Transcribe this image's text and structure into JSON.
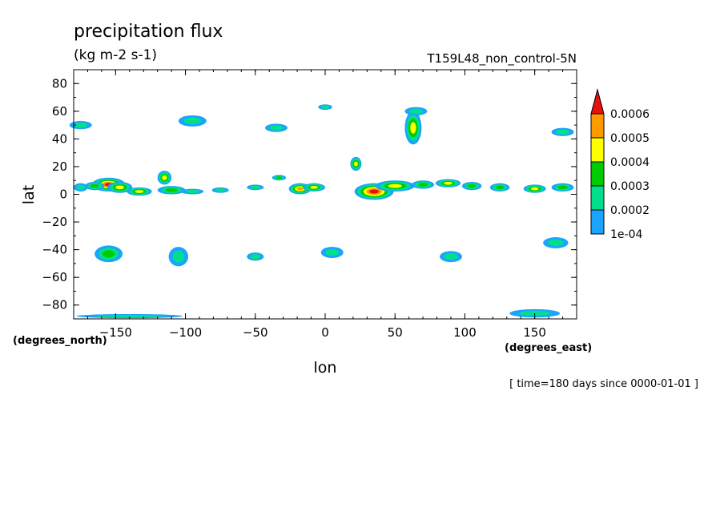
{
  "chart_data": {
    "type": "heatmap",
    "title": "precipitation flux",
    "units": "(kg m-2 s-1)",
    "run_name": "T159L48_non_control-5N",
    "xlabel": "lon",
    "ylabel": "lat",
    "x_units": "(degrees_east)",
    "y_units": "(degrees_north)",
    "time_note": "[ time=180 days since 0000-01-01 ]",
    "xlim": [
      -180,
      180
    ],
    "ylim": [
      -90,
      90
    ],
    "x_ticks": [
      -150,
      -100,
      -50,
      0,
      50,
      100,
      150
    ],
    "x_tick_labels": [
      "−150",
      "−100",
      "−50",
      "0",
      "50",
      "100",
      "150"
    ],
    "y_ticks": [
      80,
      60,
      40,
      20,
      0,
      -20,
      -40,
      -60,
      -80
    ],
    "y_tick_labels": [
      "80",
      "60",
      "40",
      "20",
      "0",
      "−20",
      "−40",
      "−60",
      "−80"
    ],
    "colorbar": {
      "labels": [
        "0.0006",
        "0.0005",
        "0.0004",
        "0.0003",
        "0.0002",
        "1e-04"
      ],
      "levels": [
        0.0001,
        0.0002,
        0.0003,
        0.0004,
        0.0005,
        0.0006
      ],
      "colors": [
        "#1aa3ff",
        "#00e08c",
        "#00cc00",
        "#ffff00",
        "#ff9900",
        "#e81010"
      ]
    },
    "features": [
      {
        "lon": -155,
        "lat": 7,
        "dlon": 12,
        "dlat": 5,
        "level": 6
      },
      {
        "lon": -147,
        "lat": 5,
        "dlon": 9,
        "dlat": 4,
        "level": 4
      },
      {
        "lon": -165,
        "lat": 6,
        "dlon": 7,
        "dlat": 3,
        "level": 3
      },
      {
        "lon": -175,
        "lat": 5,
        "dlon": 5,
        "dlat": 3,
        "level": 2
      },
      {
        "lon": -133,
        "lat": 2,
        "dlon": 9,
        "dlat": 3,
        "level": 4
      },
      {
        "lon": -115,
        "lat": 12,
        "dlon": 5,
        "dlat": 5,
        "level": 4
      },
      {
        "lon": -110,
        "lat": 3,
        "dlon": 10,
        "dlat": 3,
        "level": 3
      },
      {
        "lon": -95,
        "lat": 2,
        "dlon": 8,
        "dlat": 2,
        "level": 2
      },
      {
        "lon": -75,
        "lat": 3,
        "dlon": 6,
        "dlat": 2,
        "level": 2
      },
      {
        "lon": -50,
        "lat": 5,
        "dlon": 6,
        "dlat": 2,
        "level": 2
      },
      {
        "lon": -33,
        "lat": 12,
        "dlon": 5,
        "dlat": 2,
        "level": 3
      },
      {
        "lon": -18,
        "lat": 4,
        "dlon": 8,
        "dlat": 4,
        "level": 5
      },
      {
        "lon": -8,
        "lat": 5,
        "dlon": 8,
        "dlat": 3,
        "level": 4
      },
      {
        "lon": 22,
        "lat": 22,
        "dlon": 4,
        "dlat": 5,
        "level": 4
      },
      {
        "lon": 35,
        "lat": 2,
        "dlon": 14,
        "dlat": 6,
        "level": 6
      },
      {
        "lon": 50,
        "lat": 6,
        "dlon": 14,
        "dlat": 4,
        "level": 4
      },
      {
        "lon": 70,
        "lat": 7,
        "dlon": 8,
        "dlat": 3,
        "level": 3
      },
      {
        "lon": 88,
        "lat": 8,
        "dlon": 9,
        "dlat": 3,
        "level": 4
      },
      {
        "lon": 105,
        "lat": 6,
        "dlon": 7,
        "dlat": 3,
        "level": 3
      },
      {
        "lon": 125,
        "lat": 5,
        "dlon": 7,
        "dlat": 3,
        "level": 3
      },
      {
        "lon": 150,
        "lat": 4,
        "dlon": 8,
        "dlat": 3,
        "level": 4
      },
      {
        "lon": 170,
        "lat": 5,
        "dlon": 8,
        "dlat": 3,
        "level": 3
      },
      {
        "lon": 63,
        "lat": 48,
        "dlon": 6,
        "dlat": 12,
        "level": 4
      },
      {
        "lon": 65,
        "lat": 60,
        "dlon": 8,
        "dlat": 3,
        "level": 2
      },
      {
        "lon": -95,
        "lat": 53,
        "dlon": 10,
        "dlat": 4,
        "level": 2
      },
      {
        "lon": -35,
        "lat": 48,
        "dlon": 8,
        "dlat": 3,
        "level": 2
      },
      {
        "lon": -175,
        "lat": 50,
        "dlon": 8,
        "dlat": 3,
        "level": 2
      },
      {
        "lon": 0,
        "lat": 63,
        "dlon": 5,
        "dlat": 2,
        "level": 2
      },
      {
        "lon": 170,
        "lat": 45,
        "dlon": 8,
        "dlat": 3,
        "level": 2
      },
      {
        "lon": -155,
        "lat": -43,
        "dlon": 10,
        "dlat": 6,
        "level": 3
      },
      {
        "lon": -105,
        "lat": -45,
        "dlon": 7,
        "dlat": 7,
        "level": 2
      },
      {
        "lon": -50,
        "lat": -45,
        "dlon": 6,
        "dlat": 3,
        "level": 2
      },
      {
        "lon": 5,
        "lat": -42,
        "dlon": 8,
        "dlat": 4,
        "level": 2
      },
      {
        "lon": 90,
        "lat": -45,
        "dlon": 8,
        "dlat": 4,
        "level": 2
      },
      {
        "lon": 165,
        "lat": -35,
        "dlon": 9,
        "dlat": 4,
        "level": 2
      },
      {
        "lon": 150,
        "lat": -86,
        "dlon": 18,
        "dlat": 3,
        "level": 2
      },
      {
        "lon": -140,
        "lat": -88,
        "dlon": 38,
        "dlat": 1.5,
        "level": 2
      }
    ]
  }
}
